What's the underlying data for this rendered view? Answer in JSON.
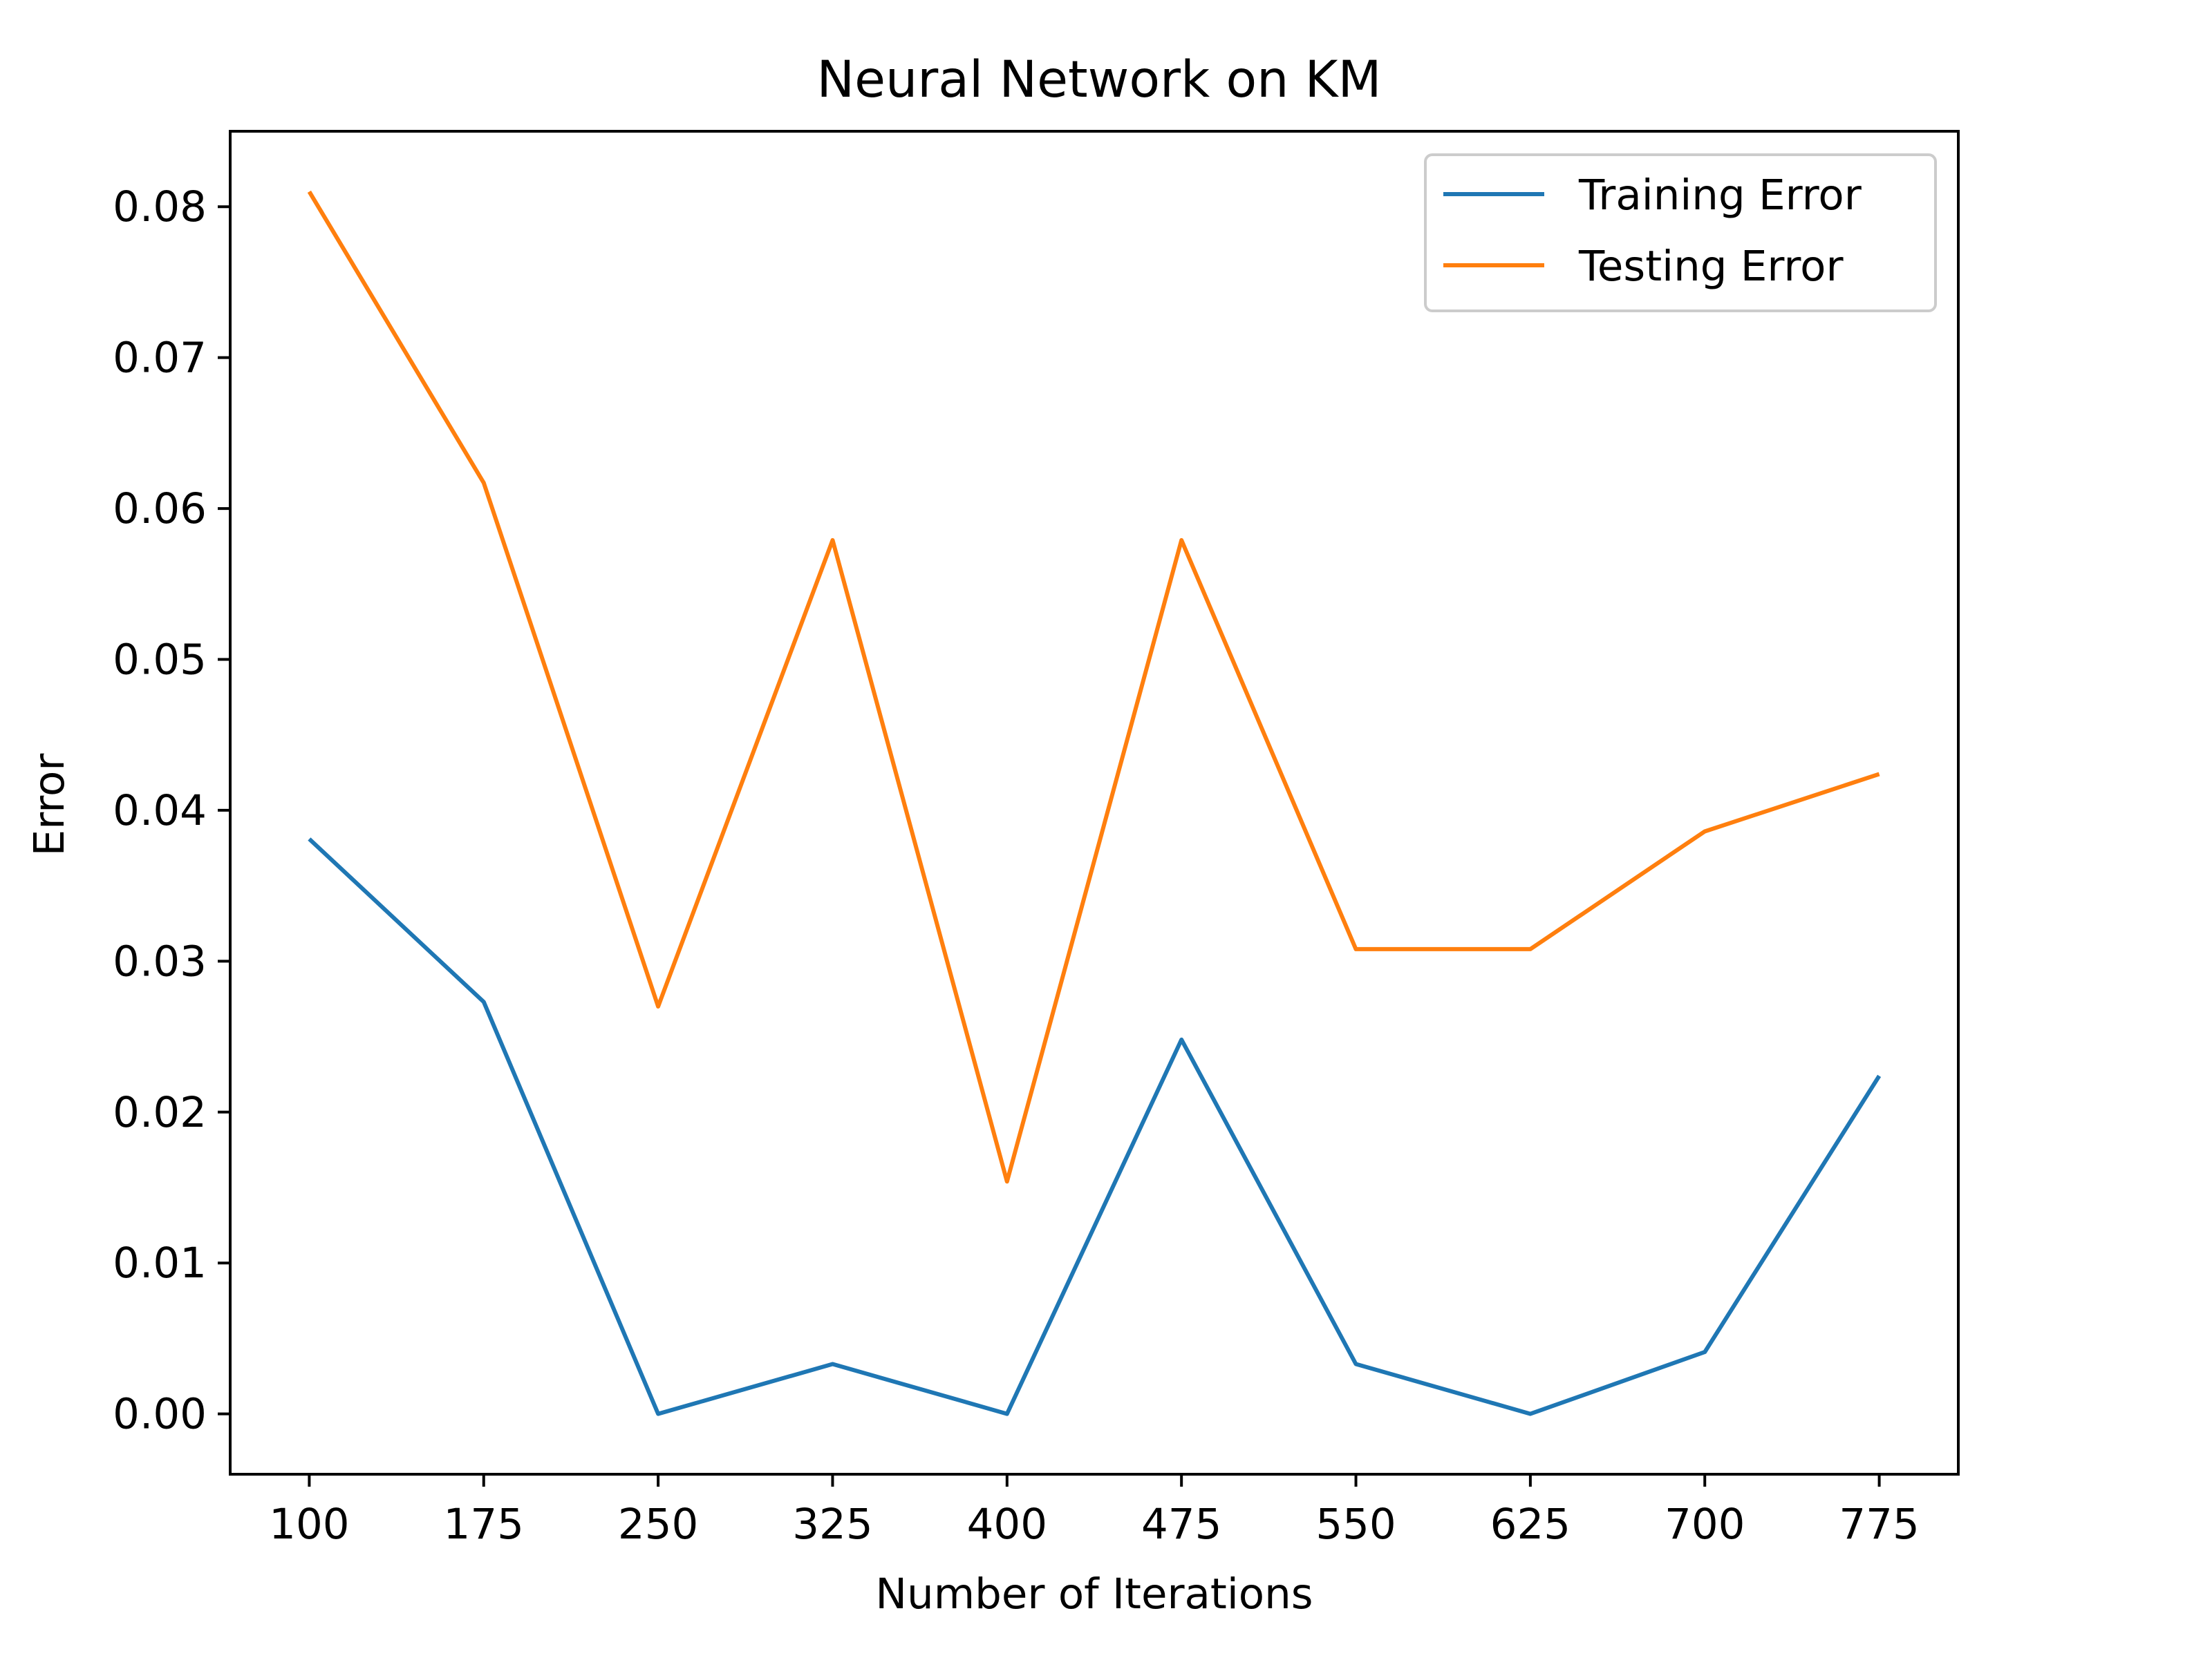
{
  "chart_data": {
    "type": "line",
    "title": "Neural Network on KM",
    "xlabel": "Number of Iterations",
    "ylabel": "Error",
    "x": [
      100,
      175,
      250,
      325,
      400,
      475,
      550,
      625,
      700,
      775
    ],
    "xticks": [
      "100",
      "175",
      "250",
      "325",
      "400",
      "475",
      "550",
      "625",
      "700",
      "775"
    ],
    "xlim": [
      66,
      809
    ],
    "ylim": [
      -0.004,
      0.085
    ],
    "yticks": [
      "0.00",
      "0.01",
      "0.02",
      "0.03",
      "0.04",
      "0.05",
      "0.06",
      "0.07",
      "0.08"
    ],
    "grid": false,
    "legend_position": "top-right",
    "series": [
      {
        "name": "Training Error",
        "color": "#1f77b4",
        "values": [
          0.0381,
          0.0273,
          0.0,
          0.0033,
          0.0,
          0.0248,
          0.0033,
          0.0,
          0.0041,
          0.0224
        ]
      },
      {
        "name": "Testing Error",
        "color": "#ff7f0e",
        "values": [
          0.081,
          0.0617,
          0.027,
          0.0579,
          0.0154,
          0.0579,
          0.0308,
          0.0308,
          0.0386,
          0.0424
        ]
      }
    ]
  }
}
